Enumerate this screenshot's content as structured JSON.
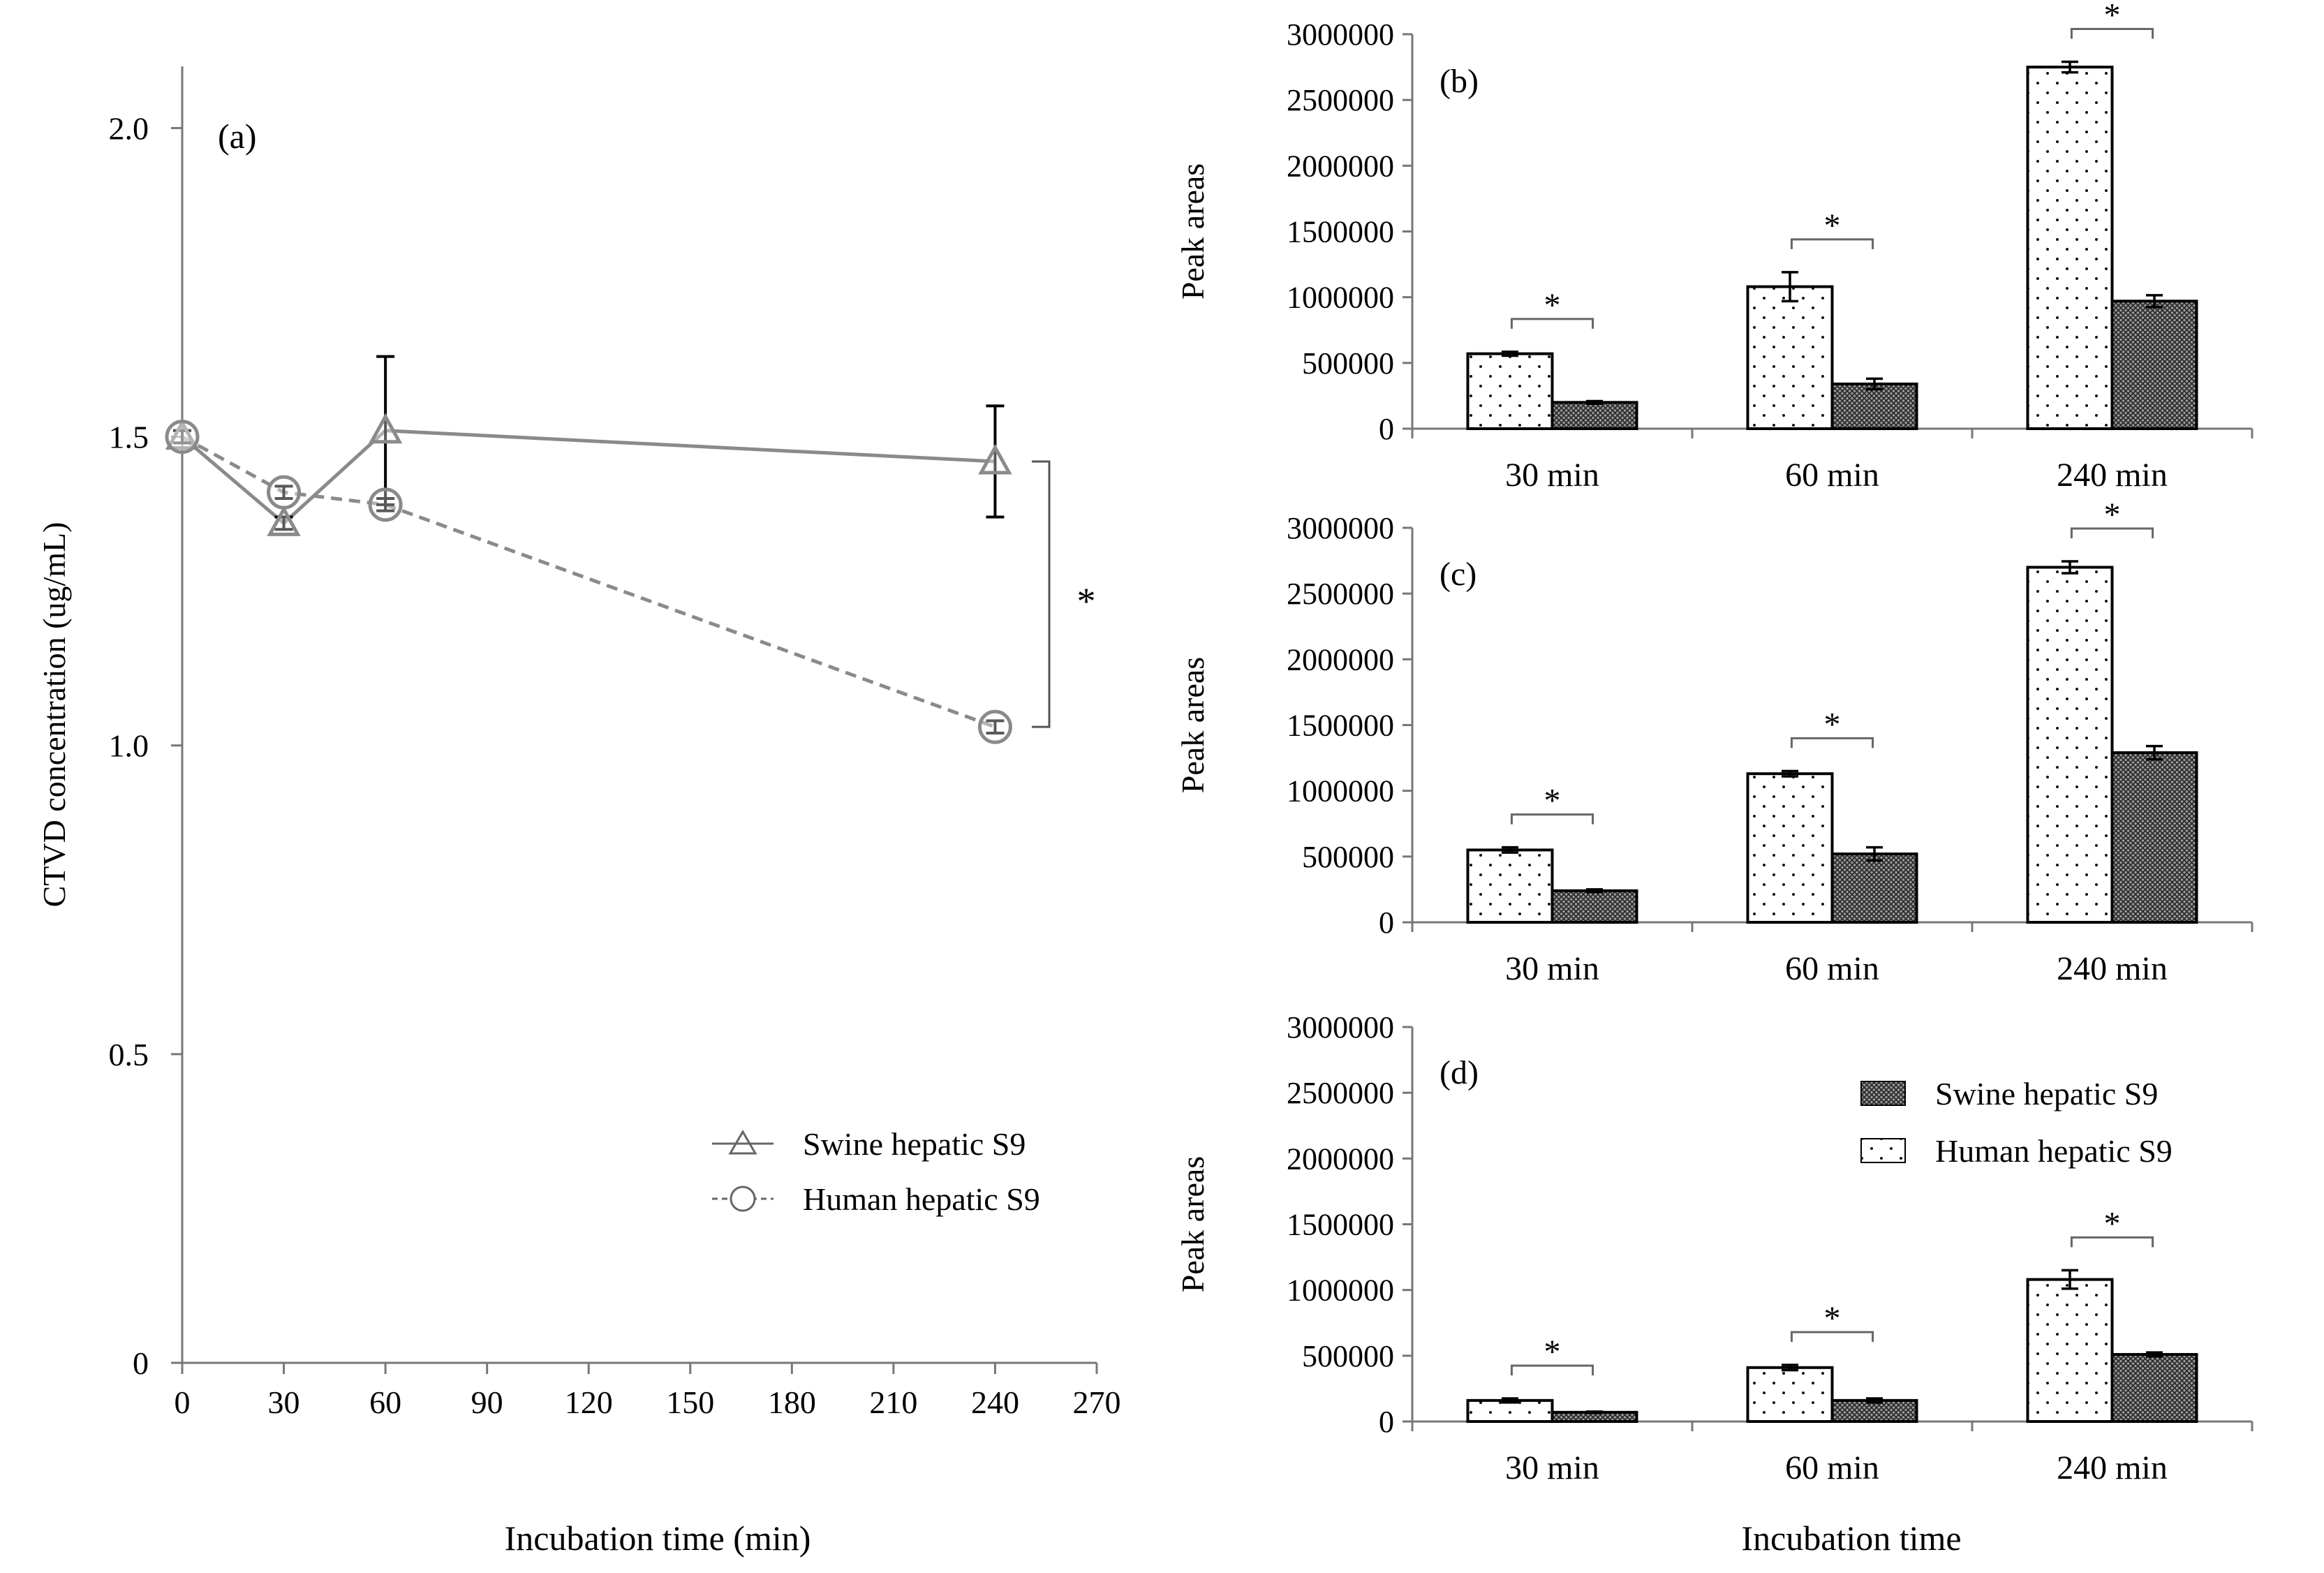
{
  "figure": {
    "left_xlabel": "Incubation time (min)",
    "right_xlabel": "Incubation time"
  },
  "colors": {
    "line_swine": "#8a8a8a",
    "line_human": "#8a8a8a",
    "axis": "#777777",
    "bar_outline": "#000000"
  },
  "chart_data": [
    {
      "id": "a",
      "type": "line",
      "panel_label": "(a)",
      "xlabel": "Incubation time (min)",
      "ylabel": "CTVD concentration (ug/mL)",
      "xlim": [
        0,
        270
      ],
      "ylim": [
        0,
        2.1
      ],
      "xticks": [
        0,
        30,
        60,
        90,
        120,
        150,
        180,
        210,
        240,
        270
      ],
      "xtick_labels": [
        "0",
        "30",
        "60",
        "90",
        "120",
        "150",
        "180",
        "210",
        "240",
        "270"
      ],
      "yticks": [
        0,
        0.5,
        1.0,
        1.5,
        2.0
      ],
      "ytick_labels": [
        "0",
        "0.5",
        "1.0",
        "1.5",
        "2.0"
      ],
      "significance_label": "*",
      "series": [
        {
          "name": "Swine hepatic S9",
          "marker": "triangle",
          "dash": "solid",
          "x": [
            0,
            30,
            60,
            240
          ],
          "y": [
            1.5,
            1.36,
            1.51,
            1.46
          ],
          "err": [
            0.01,
            0.01,
            0.12,
            0.09
          ]
        },
        {
          "name": "Human hepatic S9",
          "marker": "circle",
          "dash": "dashed",
          "x": [
            0,
            30,
            60,
            240
          ],
          "y": [
            1.5,
            1.41,
            1.39,
            1.03
          ],
          "err": [
            0.01,
            0.01,
            0.01,
            0.01
          ]
        }
      ]
    },
    {
      "id": "b",
      "type": "bar",
      "panel_label": "(b)",
      "ylabel": "Peak areas",
      "categories": [
        "30 min",
        "60 min",
        "240 min"
      ],
      "ylim": [
        0,
        3000000
      ],
      "yticks": [
        0,
        500000,
        1000000,
        1500000,
        2000000,
        2500000,
        3000000
      ],
      "ytick_labels": [
        "0",
        "500000",
        "1000000",
        "1500000",
        "2000000",
        "2500000",
        "3000000"
      ],
      "significance_labels": [
        "*",
        "*",
        "*"
      ],
      "series": [
        {
          "name": "Human hepatic S9",
          "pattern": "dots",
          "values": [
            570000,
            1080000,
            2750000
          ],
          "err": [
            15000,
            110000,
            40000
          ]
        },
        {
          "name": "Swine hepatic S9",
          "pattern": "crosshatch",
          "values": [
            200000,
            340000,
            970000
          ],
          "err": [
            10000,
            40000,
            45000
          ]
        }
      ]
    },
    {
      "id": "c",
      "type": "bar",
      "panel_label": "(c)",
      "ylabel": "Peak areas",
      "categories": [
        "30 min",
        "60 min",
        "240 min"
      ],
      "ylim": [
        0,
        3000000
      ],
      "yticks": [
        0,
        500000,
        1000000,
        1500000,
        2000000,
        2500000,
        3000000
      ],
      "ytick_labels": [
        "0",
        "500000",
        "1000000",
        "1500000",
        "2000000",
        "2500000",
        "3000000"
      ],
      "significance_labels": [
        "*",
        "*",
        "*"
      ],
      "series": [
        {
          "name": "Human hepatic S9",
          "pattern": "dots",
          "values": [
            550000,
            1130000,
            2700000
          ],
          "err": [
            20000,
            20000,
            45000
          ]
        },
        {
          "name": "Swine hepatic S9",
          "pattern": "crosshatch",
          "values": [
            240000,
            520000,
            1290000
          ],
          "err": [
            10000,
            50000,
            50000
          ]
        }
      ]
    },
    {
      "id": "d",
      "type": "bar",
      "panel_label": "(d)",
      "ylabel": "Peak areas",
      "categories": [
        "30 min",
        "60 min",
        "240 min"
      ],
      "ylim": [
        0,
        3000000
      ],
      "yticks": [
        0,
        500000,
        1000000,
        1500000,
        2000000,
        2500000,
        3000000
      ],
      "ytick_labels": [
        "0",
        "500000",
        "1000000",
        "1500000",
        "2000000",
        "2500000",
        "3000000"
      ],
      "significance_labels": [
        "*",
        "*",
        "*"
      ],
      "legend": [
        "Swine hepatic S9",
        "Human hepatic S9"
      ],
      "series": [
        {
          "name": "Human hepatic S9",
          "pattern": "dots",
          "values": [
            160000,
            410000,
            1080000
          ],
          "err": [
            15000,
            20000,
            70000
          ]
        },
        {
          "name": "Swine hepatic S9",
          "pattern": "crosshatch",
          "values": [
            70000,
            160000,
            510000
          ],
          "err": [
            5000,
            15000,
            15000
          ]
        }
      ]
    }
  ]
}
